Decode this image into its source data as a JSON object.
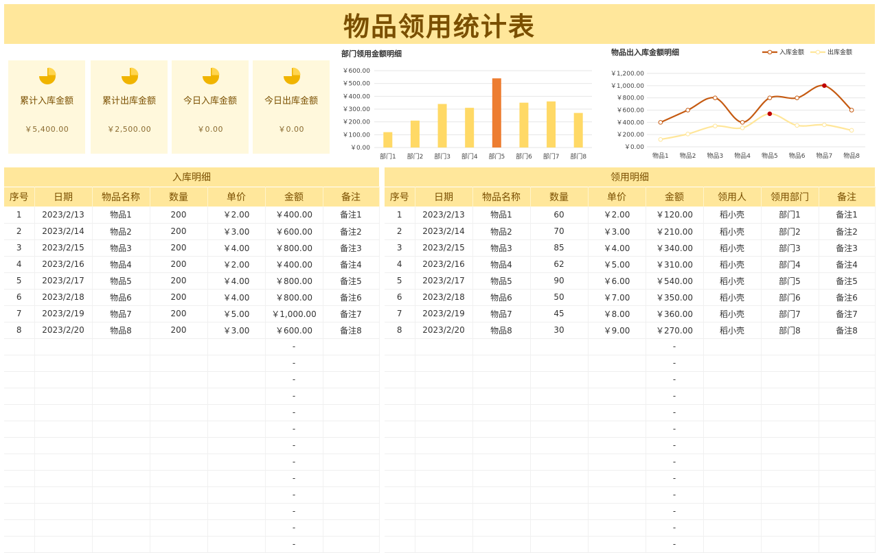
{
  "page_title": "物品领用统计表",
  "cards": [
    {
      "label": "累计入库金额",
      "value": "￥5,400.00",
      "icon": "pie-chart-icon"
    },
    {
      "label": "累计出库金额",
      "value": "￥2,500.00",
      "icon": "pie-chart-icon"
    },
    {
      "label": "今日入库金额",
      "value": "￥0.00",
      "icon": "pie-chart-icon"
    },
    {
      "label": "今日出库金额",
      "value": "￥0.00",
      "icon": "pie-chart-icon"
    }
  ],
  "colors": {
    "accent": "#ffe79b",
    "bar": "#ffd966",
    "bar_highlight": "#ed7d31",
    "line_in": "#c55a11",
    "line_out": "#ffe699",
    "text_brown": "#7a4f00"
  },
  "chart_data": [
    {
      "type": "bar",
      "title": "部门领用金额明细",
      "categories": [
        "部门1",
        "部门2",
        "部门3",
        "部门4",
        "部门5",
        "部门6",
        "部门7",
        "部门8"
      ],
      "values": [
        120,
        210,
        340,
        310,
        540,
        350,
        360,
        270
      ],
      "highlight_index": 4,
      "ylim": [
        0,
        600
      ],
      "yticks": [
        "￥0.00",
        "￥100.00",
        "￥200.00",
        "￥300.00",
        "￥400.00",
        "￥500.00",
        "￥600.00"
      ],
      "grid": true
    },
    {
      "type": "line",
      "title": "物品出入库金额明细",
      "categories": [
        "物品1",
        "物品2",
        "物品3",
        "物品4",
        "物品5",
        "物品6",
        "物品7",
        "物品8"
      ],
      "series": [
        {
          "name": "入库金额",
          "values": [
            400,
            600,
            800,
            400,
            800,
            800,
            1000,
            600
          ]
        },
        {
          "name": "出库金额",
          "values": [
            120,
            210,
            340,
            310,
            540,
            350,
            360,
            270
          ]
        }
      ],
      "ylim": [
        0,
        1200
      ],
      "yticks": [
        "￥0.00",
        "￥200.00",
        "￥400.00",
        "￥600.00",
        "￥800.00",
        "￥1,000.00",
        "￥1,200.00"
      ],
      "legend": "top-right",
      "grid": true
    }
  ],
  "inbound": {
    "title": "入库明细",
    "headers": [
      "序号",
      "日期",
      "物品名称",
      "数量",
      "单价",
      "金额",
      "备注"
    ],
    "rows": [
      [
        "1",
        "2023/2/13",
        "物品1",
        "200",
        "￥2.00",
        "￥400.00",
        "备注1"
      ],
      [
        "2",
        "2023/2/14",
        "物品2",
        "200",
        "￥3.00",
        "￥600.00",
        "备注2"
      ],
      [
        "3",
        "2023/2/15",
        "物品3",
        "200",
        "￥4.00",
        "￥800.00",
        "备注3"
      ],
      [
        "4",
        "2023/2/16",
        "物品4",
        "200",
        "￥2.00",
        "￥400.00",
        "备注4"
      ],
      [
        "5",
        "2023/2/17",
        "物品5",
        "200",
        "￥4.00",
        "￥800.00",
        "备注5"
      ],
      [
        "6",
        "2023/2/18",
        "物品6",
        "200",
        "￥4.00",
        "￥800.00",
        "备注6"
      ],
      [
        "7",
        "2023/2/19",
        "物品7",
        "200",
        "￥5.00",
        "￥1,000.00",
        "备注7"
      ],
      [
        "8",
        "2023/2/20",
        "物品8",
        "200",
        "￥3.00",
        "￥600.00",
        "备注8"
      ]
    ],
    "empty_amount": "-"
  },
  "outbound": {
    "title": "领用明细",
    "headers": [
      "序号",
      "日期",
      "物品名称",
      "数量",
      "单价",
      "金额",
      "领用人",
      "领用部门",
      "备注"
    ],
    "rows": [
      [
        "1",
        "2023/2/13",
        "物品1",
        "60",
        "￥2.00",
        "￥120.00",
        "稻小壳",
        "部门1",
        "备注1"
      ],
      [
        "2",
        "2023/2/14",
        "物品2",
        "70",
        "￥3.00",
        "￥210.00",
        "稻小壳",
        "部门2",
        "备注2"
      ],
      [
        "3",
        "2023/2/15",
        "物品3",
        "85",
        "￥4.00",
        "￥340.00",
        "稻小壳",
        "部门3",
        "备注3"
      ],
      [
        "4",
        "2023/2/16",
        "物品4",
        "62",
        "￥5.00",
        "￥310.00",
        "稻小壳",
        "部门4",
        "备注4"
      ],
      [
        "5",
        "2023/2/17",
        "物品5",
        "90",
        "￥6.00",
        "￥540.00",
        "稻小壳",
        "部门5",
        "备注5"
      ],
      [
        "6",
        "2023/2/18",
        "物品6",
        "50",
        "￥7.00",
        "￥350.00",
        "稻小壳",
        "部门6",
        "备注6"
      ],
      [
        "7",
        "2023/2/19",
        "物品7",
        "45",
        "￥8.00",
        "￥360.00",
        "稻小壳",
        "部门7",
        "备注7"
      ],
      [
        "8",
        "2023/2/20",
        "物品8",
        "30",
        "￥9.00",
        "￥270.00",
        "稻小壳",
        "部门8",
        "备注8"
      ]
    ],
    "empty_amount": "-"
  }
}
